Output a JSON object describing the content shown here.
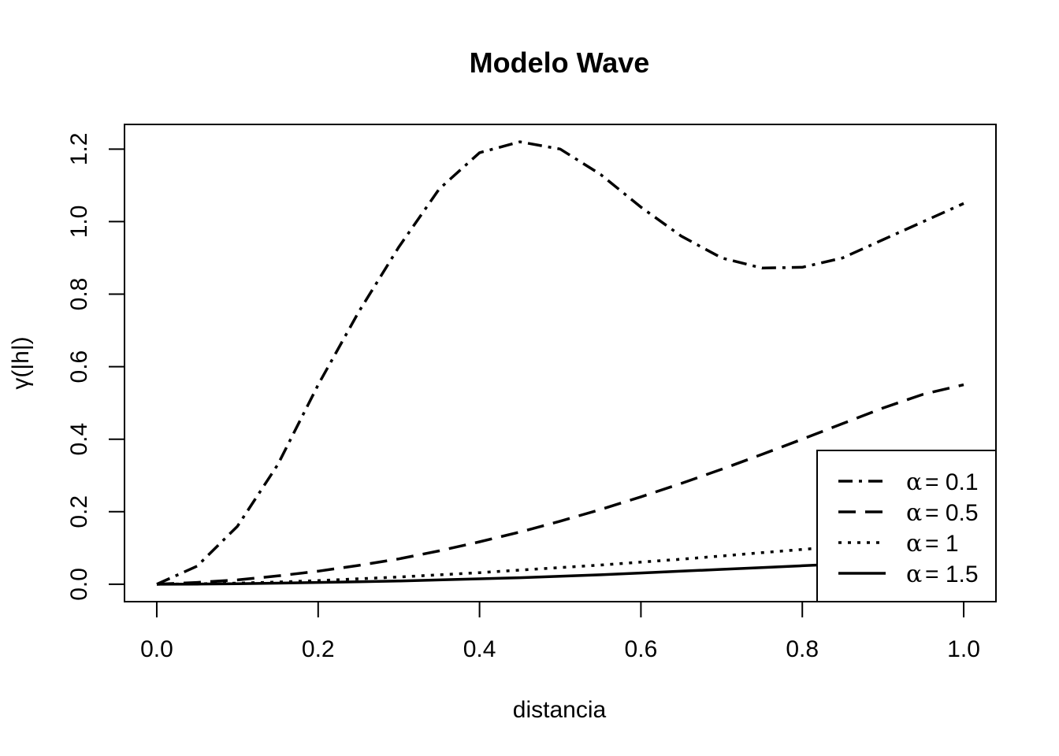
{
  "chart_data": {
    "type": "line",
    "title": "Modelo Wave",
    "xlabel": "distancia",
    "ylabel": "γ(|h|)",
    "xlim": [
      -0.04,
      1.04
    ],
    "ylim": [
      -0.048,
      1.268
    ],
    "x_ticks": [
      "0.0",
      "0.2",
      "0.4",
      "0.6",
      "0.8",
      "1.0"
    ],
    "y_ticks": [
      "0.0",
      "0.2",
      "0.4",
      "0.6",
      "0.8",
      "1.0",
      "1.2"
    ],
    "grid": false,
    "legend_position": "bottom-right",
    "x": [
      0.0,
      0.05,
      0.1,
      0.15,
      0.2,
      0.25,
      0.3,
      0.35,
      0.4,
      0.45,
      0.5,
      0.55,
      0.6,
      0.65,
      0.7,
      0.75,
      0.8,
      0.85,
      0.9,
      0.95,
      1.0
    ],
    "series": [
      {
        "name": "α = 0.1",
        "legend_symbol": "α",
        "legend_value": "= 0.1",
        "dash": "18,8,4,8",
        "values": [
          0.0,
          0.05,
          0.16,
          0.33,
          0.55,
          0.75,
          0.93,
          1.09,
          1.19,
          1.22,
          1.2,
          1.13,
          1.04,
          0.96,
          0.9,
          0.872,
          0.874,
          0.9,
          0.95,
          1.0,
          1.05
        ]
      },
      {
        "name": "α = 0.5",
        "legend_symbol": "α",
        "legend_value": "= 0.5",
        "dash": "22,12",
        "values": [
          0.0,
          0.005,
          0.012,
          0.023,
          0.036,
          0.052,
          0.07,
          0.092,
          0.117,
          0.144,
          0.174,
          0.206,
          0.241,
          0.278,
          0.317,
          0.358,
          0.4,
          0.443,
          0.486,
          0.524,
          0.55
        ]
      },
      {
        "name": "α = 1",
        "legend_symbol": "α",
        "legend_value": "= 1",
        "dash": "4,8",
        "values": [
          0.0,
          0.001,
          0.003,
          0.006,
          0.01,
          0.015,
          0.02,
          0.026,
          0.032,
          0.039,
          0.046,
          0.053,
          0.061,
          0.069,
          0.078,
          0.087,
          0.096,
          0.105,
          0.114,
          0.123,
          0.132
        ]
      },
      {
        "name": "α = 1.5",
        "legend_symbol": "α",
        "legend_value": "= 1.5",
        "dash": "",
        "values": [
          0.0,
          0.0005,
          0.0015,
          0.003,
          0.005,
          0.007,
          0.009,
          0.012,
          0.015,
          0.018,
          0.022,
          0.026,
          0.031,
          0.036,
          0.041,
          0.046,
          0.051,
          0.056,
          0.061,
          0.066,
          0.07
        ]
      }
    ]
  }
}
